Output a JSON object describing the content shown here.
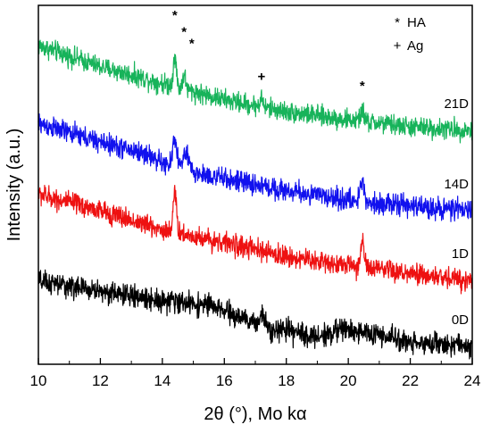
{
  "chart_data": {
    "type": "line",
    "xlabel": "2θ (°), Mo kα",
    "ylabel": "Intensity (a.u.)",
    "xlim": [
      10,
      24
    ],
    "xticks": [
      10,
      12,
      14,
      16,
      18,
      20,
      22,
      24
    ],
    "legend": [
      {
        "symbol": "*",
        "label": "HA"
      },
      {
        "symbol": "+",
        "label": "Ag"
      }
    ],
    "series": [
      {
        "name": "21D",
        "color": "#17b35a",
        "noise": 0.38,
        "points": [
          [
            10,
            12.9
          ],
          [
            12,
            12.0
          ],
          [
            14,
            11.3
          ],
          [
            16,
            10.6
          ],
          [
            18,
            10.1
          ],
          [
            20,
            9.75
          ],
          [
            22,
            9.45
          ],
          [
            24,
            9.3
          ]
        ],
        "peaks": [
          [
            14.4,
            1.3,
            0.05
          ],
          [
            14.7,
            0.6,
            0.05
          ],
          [
            17.2,
            0.35,
            0.05
          ],
          [
            20.45,
            0.5,
            0.05
          ]
        ]
      },
      {
        "name": "14D",
        "color": "#1111ee",
        "noise": 0.4,
        "points": [
          [
            10,
            9.6
          ],
          [
            12,
            8.8
          ],
          [
            13.5,
            8.3
          ],
          [
            14.3,
            7.7
          ],
          [
            16,
            7.25
          ],
          [
            18,
            6.75
          ],
          [
            20,
            6.35
          ],
          [
            22,
            6.1
          ],
          [
            24,
            5.9
          ]
        ],
        "peaks": [
          [
            14.4,
            1.3,
            0.07
          ],
          [
            14.75,
            0.7,
            0.1
          ],
          [
            20.45,
            0.9,
            0.06
          ]
        ]
      },
      {
        "name": "1D",
        "color": "#ee1111",
        "noise": 0.4,
        "points": [
          [
            10,
            6.6
          ],
          [
            12,
            5.9
          ],
          [
            14,
            5.1
          ],
          [
            16,
            4.55
          ],
          [
            18,
            3.95
          ],
          [
            20,
            3.6
          ],
          [
            22,
            3.2
          ],
          [
            24,
            2.95
          ]
        ],
        "peaks": [
          [
            14.4,
            1.55,
            0.06
          ],
          [
            20.45,
            1.2,
            0.05
          ]
        ]
      },
      {
        "name": "0D",
        "color": "#000000",
        "noise": 0.42,
        "points": [
          [
            10,
            2.9
          ],
          [
            12,
            2.5
          ],
          [
            14,
            2.1
          ],
          [
            15.5,
            1.9
          ],
          [
            16.2,
            1.55
          ],
          [
            17.0,
            1.1
          ],
          [
            18,
            0.8
          ],
          [
            19,
            0.55
          ],
          [
            19.8,
            0.9
          ],
          [
            20.5,
            0.75
          ],
          [
            22,
            0.35
          ],
          [
            24,
            0.15
          ]
        ],
        "peaks": [
          [
            17.2,
            0.55,
            0.07
          ]
        ]
      }
    ],
    "annotations": [
      {
        "text": "*",
        "x": 14.4,
        "y": 14.0
      },
      {
        "text": "*",
        "x": 14.7,
        "y": 13.3
      },
      {
        "text": "*",
        "x": 14.95,
        "y": 12.8
      },
      {
        "text": "+",
        "x": 17.2,
        "y": 11.4
      },
      {
        "text": "*",
        "x": 20.45,
        "y": 11.0
      }
    ]
  }
}
